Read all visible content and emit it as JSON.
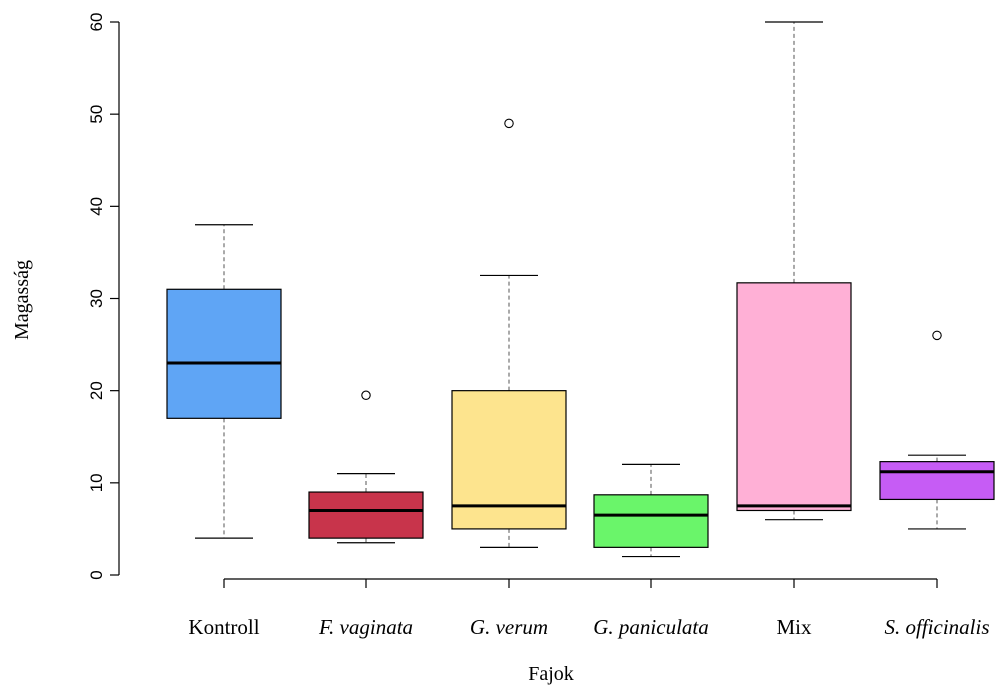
{
  "chart_data": {
    "type": "boxplot",
    "xlabel": "Fajok",
    "ylabel": "Magasság",
    "ylim": [
      0,
      60
    ],
    "yticks": [
      "0",
      "10",
      "20",
      "30",
      "40",
      "50",
      "60"
    ],
    "grid": false,
    "categories": [
      {
        "label": "Kontroll",
        "italic": false,
        "color": "#5fa5f5",
        "whisker_low": 4,
        "q1": 17,
        "median": 23,
        "q3": 31,
        "whisker_high": 38,
        "outliers": []
      },
      {
        "label": "F. vaginata",
        "italic": true,
        "color": "#c8344b",
        "whisker_low": 3.5,
        "q1": 4,
        "median": 7,
        "q3": 9,
        "whisker_high": 11,
        "outliers": [
          19.5
        ]
      },
      {
        "label": "G. verum",
        "italic": true,
        "color": "#fde48e",
        "whisker_low": 3,
        "q1": 5,
        "median": 7.5,
        "q3": 20,
        "whisker_high": 32.5,
        "outliers": [
          49
        ]
      },
      {
        "label": "G. paniculata",
        "italic": true,
        "color": "#6af56a",
        "whisker_low": 2,
        "q1": 3,
        "median": 6.5,
        "q3": 8.7,
        "whisker_high": 12,
        "outliers": []
      },
      {
        "label": "Mix",
        "italic": false,
        "color": "#ffb0d6",
        "whisker_low": 6,
        "q1": 7,
        "median": 7.5,
        "q3": 31.7,
        "whisker_high": 60,
        "outliers": []
      },
      {
        "label": "S. officinalis",
        "italic": true,
        "color": "#c65cf5",
        "whisker_low": 5,
        "q1": 8.2,
        "median": 11.2,
        "q3": 12.3,
        "whisker_high": 13,
        "outliers": [
          26
        ]
      }
    ]
  }
}
